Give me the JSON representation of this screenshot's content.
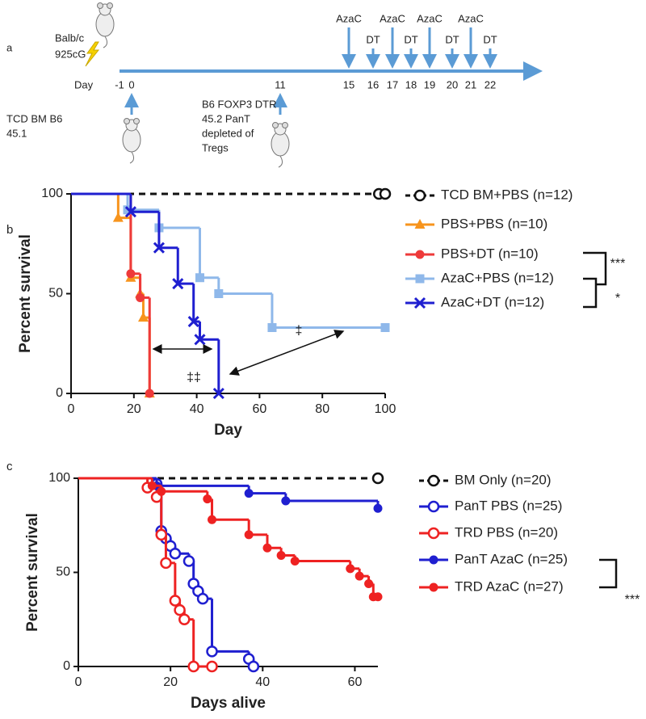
{
  "diagram": {
    "panel": "a",
    "strain": "Balb/c",
    "dose": "925cG",
    "day_label": "Day",
    "days": [
      -1,
      0,
      11,
      15,
      16,
      17,
      18,
      19,
      20,
      21,
      22
    ],
    "treatments": [
      "AzaC",
      "DT",
      "AzaC",
      "DT",
      "AzaC",
      "DT",
      "AzaC",
      "DT"
    ],
    "bm_donor": [
      "TCD BM B6",
      "45.1"
    ],
    "t_donor": [
      "B6 FOXP3 DTR",
      "45.2 PanT",
      "depleted of",
      "Tregs"
    ]
  },
  "chart_data": [
    {
      "type": "survival",
      "panel": "b",
      "xlabel": "Day",
      "ylabel": "Percent survival",
      "xlim": [
        0,
        100
      ],
      "ylim": [
        0,
        100
      ],
      "xticks": [
        0,
        20,
        40,
        60,
        80,
        100
      ],
      "yticks": [
        0,
        50,
        100
      ],
      "annotations": [
        "***",
        "*",
        "‡‡",
        "‡"
      ],
      "series": [
        {
          "name": "TCD BM+PBS (n=12)",
          "color": "#111111",
          "marker": "open-circle",
          "dashed": true,
          "x": [
            0,
            98,
            100
          ],
          "values": [
            100,
            100,
            100
          ]
        },
        {
          "name": "PBS+PBS (n=10)",
          "color": "#f7941d",
          "marker": "triangle",
          "dashed": false,
          "x": [
            0,
            15,
            19,
            22,
            23,
            25
          ],
          "values": [
            100,
            88,
            58,
            50,
            38,
            0
          ]
        },
        {
          "name": "PBS+DT (n=10)",
          "color": "#ee3a3a",
          "marker": "circle",
          "dashed": false,
          "x": [
            0,
            19,
            22,
            25
          ],
          "values": [
            100,
            60,
            48,
            0
          ]
        },
        {
          "name": "AzaC+PBS (n=12)",
          "color": "#8fb8ea",
          "marker": "square",
          "dashed": false,
          "x": [
            0,
            18,
            28,
            41,
            47,
            64,
            100
          ],
          "values": [
            100,
            92,
            83,
            58,
            50,
            33,
            33
          ]
        },
        {
          "name": "AzaC+DT (n=12)",
          "color": "#1f1fd0",
          "marker": "x",
          "dashed": false,
          "x": [
            0,
            19,
            28,
            34,
            39,
            41,
            47
          ],
          "values": [
            100,
            91,
            73,
            55,
            36,
            27,
            0
          ]
        }
      ]
    },
    {
      "type": "survival",
      "panel": "c",
      "xlabel": "Days alive",
      "ylabel": "Percent survival",
      "xlim": [
        0,
        65
      ],
      "ylim": [
        0,
        100
      ],
      "xticks": [
        0,
        20,
        40,
        60
      ],
      "yticks": [
        0,
        50,
        100
      ],
      "annotations": [
        "***"
      ],
      "series": [
        {
          "name": "BM Only (n=20)",
          "color": "#111111",
          "marker": "open-circle",
          "dashed": true,
          "x": [
            0,
            65
          ],
          "values": [
            100,
            100
          ]
        },
        {
          "name": "PanT PBS  (n=25)",
          "color": "#1f1fd0",
          "marker": "open-circle",
          "dashed": false,
          "x": [
            0,
            17,
            18,
            19,
            20,
            21,
            24,
            25,
            26,
            27,
            29,
            37,
            38
          ],
          "values": [
            100,
            97,
            72,
            68,
            64,
            60,
            56,
            44,
            40,
            36,
            8,
            4,
            0
          ]
        },
        {
          "name": "TRD PBS  (n=20)",
          "color": "#ee2222",
          "marker": "open-circle",
          "dashed": false,
          "x": [
            0,
            15,
            17,
            18,
            19,
            21,
            22,
            23,
            25,
            29
          ],
          "values": [
            100,
            95,
            90,
            70,
            55,
            35,
            30,
            25,
            0,
            0
          ]
        },
        {
          "name": "PanT AzaC  (n=25)",
          "color": "#1f1fd0",
          "marker": "circle",
          "dashed": false,
          "x": [
            0,
            17,
            37,
            45,
            65
          ],
          "values": [
            100,
            96,
            92,
            88,
            84
          ]
        },
        {
          "name": "TRD AzaC  (n=27)",
          "color": "#ee2222",
          "marker": "circle",
          "dashed": false,
          "x": [
            0,
            16,
            18,
            28,
            29,
            37,
            41,
            44,
            47,
            59,
            61,
            63,
            64,
            65
          ],
          "values": [
            100,
            96,
            93,
            89,
            78,
            70,
            63,
            59,
            56,
            52,
            48,
            44,
            37,
            37
          ]
        }
      ]
    }
  ]
}
